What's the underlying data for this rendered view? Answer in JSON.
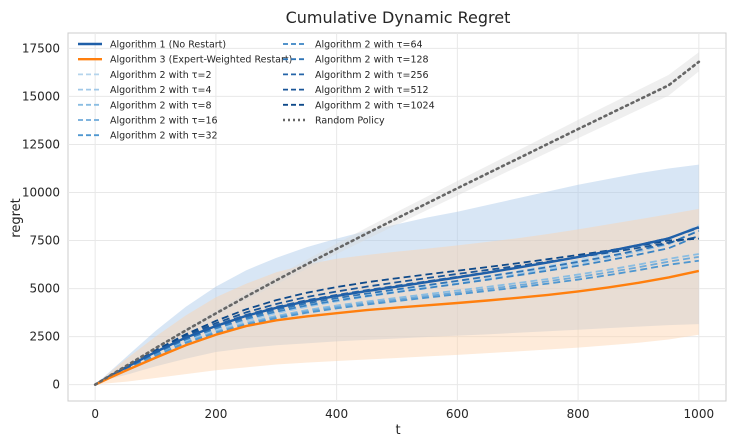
{
  "chart_data": {
    "type": "line",
    "title": "Cumulative Dynamic Regret",
    "xlabel": "t",
    "ylabel": "regret",
    "xlim": [
      -45,
      1045
    ],
    "ylim": [
      -850,
      18300
    ],
    "xticks": [
      0,
      200,
      400,
      600,
      800,
      1000
    ],
    "yticks": [
      0,
      2500,
      5000,
      7500,
      10000,
      12500,
      15000,
      17500
    ],
    "grid": true,
    "legend_position": "top-left",
    "x": [
      0,
      25,
      50,
      100,
      150,
      200,
      250,
      300,
      350,
      400,
      450,
      500,
      550,
      600,
      650,
      700,
      750,
      800,
      850,
      900,
      950,
      1000
    ],
    "series": [
      {
        "name": "Algorithm 1 (No Restart)",
        "style": "solid",
        "color": "#1f5fa8",
        "width": 2.4,
        "values": [
          0,
          460,
          880,
          1700,
          2450,
          3050,
          3580,
          4000,
          4340,
          4620,
          4870,
          5100,
          5340,
          5580,
          5830,
          6090,
          6360,
          6640,
          6940,
          7260,
          7610,
          8200
        ],
        "band": {
          "color": "#a9c8e8",
          "lower": [
            0,
            300,
            500,
            950,
            1350,
            1700,
            1900,
            2050,
            2150,
            2250,
            2330,
            2400,
            2480,
            2550,
            2620,
            2700,
            2780,
            2860,
            2940,
            3020,
            3100,
            3150
          ],
          "upper": [
            0,
            700,
            1400,
            2800,
            4050,
            5100,
            5950,
            6600,
            7150,
            7600,
            8000,
            8350,
            8700,
            9000,
            9350,
            9700,
            10050,
            10400,
            10700,
            11000,
            11250,
            11450
          ]
        }
      },
      {
        "name": "Algorithm 3 (Expert-Weighted Restart)",
        "style": "solid",
        "color": "#ff7f0e",
        "width": 2.4,
        "values": [
          0,
          370,
          720,
          1400,
          2050,
          2600,
          3050,
          3350,
          3550,
          3720,
          3880,
          4010,
          4130,
          4250,
          4380,
          4520,
          4670,
          4850,
          5060,
          5300,
          5580,
          5920
        ],
        "band": {
          "color": "#fcd2ad",
          "lower": [
            0,
            80,
            150,
            350,
            550,
            750,
            900,
            1050,
            1150,
            1230,
            1310,
            1390,
            1470,
            1550,
            1640,
            1730,
            1830,
            1930,
            2050,
            2180,
            2350,
            2600
          ],
          "upper": [
            0,
            650,
            1300,
            2500,
            3600,
            4550,
            5250,
            5850,
            6250,
            6550,
            6750,
            6920,
            7080,
            7250,
            7430,
            7620,
            7840,
            8080,
            8340,
            8600,
            8870,
            9150
          ]
        }
      },
      {
        "name": "Algorithm 2 with τ=2",
        "style": "dashed",
        "color": "#b4d4ec",
        "width": 1.8,
        "values": [
          0,
          420,
          820,
          1600,
          2300,
          2880,
          3380,
          3780,
          4120,
          4400,
          4660,
          4900,
          5140,
          5380,
          5640,
          5900,
          6180,
          6480,
          6800,
          7150,
          7550,
          8300
        ]
      },
      {
        "name": "Algorithm 2 with τ=4",
        "style": "dashed",
        "color": "#a0c8e8",
        "width": 1.8,
        "values": [
          0,
          410,
          800,
          1570,
          2270,
          2840,
          3330,
          3720,
          4050,
          4330,
          4580,
          4810,
          5040,
          5270,
          5510,
          5760,
          6020,
          6300,
          6600,
          6930,
          7300,
          8050
        ]
      },
      {
        "name": "Algorithm 2 with τ=8",
        "style": "dashed",
        "color": "#8abde2",
        "width": 1.8,
        "values": [
          0,
          405,
          790,
          1550,
          2230,
          2780,
          3220,
          3580,
          3880,
          4120,
          4330,
          4520,
          4710,
          4900,
          5090,
          5290,
          5500,
          5730,
          5980,
          6250,
          6550,
          6800
        ]
      },
      {
        "name": "Algorithm 2 with τ=16",
        "style": "dashed",
        "color": "#6eaada",
        "width": 1.8,
        "values": [
          0,
          400,
          780,
          1530,
          2200,
          2740,
          3170,
          3520,
          3810,
          4040,
          4250,
          4430,
          4610,
          4790,
          4980,
          5170,
          5380,
          5600,
          5840,
          6110,
          6400,
          6650
        ]
      },
      {
        "name": "Algorithm 2 with τ=32",
        "style": "dashed",
        "color": "#4f97d0",
        "width": 1.8,
        "values": [
          0,
          395,
          770,
          1510,
          2170,
          2700,
          3120,
          3460,
          3740,
          3970,
          4170,
          4350,
          4530,
          4700,
          4880,
          5060,
          5260,
          5470,
          5700,
          5960,
          6240,
          6450
        ]
      },
      {
        "name": "Algorithm 2 with τ=64",
        "style": "dashed",
        "color": "#3a84c4",
        "width": 1.8,
        "values": [
          0,
          425,
          830,
          1630,
          2350,
          2930,
          3420,
          3800,
          4120,
          4380,
          4610,
          4820,
          5030,
          5240,
          5460,
          5690,
          5930,
          6190,
          6470,
          6770,
          7100,
          7750
        ]
      },
      {
        "name": "Algorithm 2 with τ=128",
        "style": "dashed",
        "color": "#2f74b5",
        "width": 1.8,
        "values": [
          0,
          430,
          845,
          1660,
          2400,
          3000,
          3500,
          3900,
          4230,
          4500,
          4740,
          4960,
          5180,
          5400,
          5630,
          5870,
          6120,
          6390,
          6680,
          7000,
          7350,
          8000
        ]
      },
      {
        "name": "Algorithm 2 with τ=256",
        "style": "dashed",
        "color": "#2464a8",
        "width": 1.8,
        "values": [
          0,
          440,
          860,
          1700,
          2470,
          3100,
          3630,
          4050,
          4390,
          4670,
          4920,
          5150,
          5380,
          5610,
          5850,
          6100,
          6360,
          6640,
          6940,
          7270,
          7630,
          8150
        ]
      },
      {
        "name": "Algorithm 2 with τ=512",
        "style": "dashed",
        "color": "#1a5698",
        "width": 1.8,
        "values": [
          0,
          450,
          880,
          1740,
          2540,
          3200,
          3760,
          4200,
          4560,
          4850,
          5100,
          5330,
          5550,
          5760,
          5970,
          6180,
          6400,
          6630,
          6870,
          7120,
          7390,
          7700
        ]
      },
      {
        "name": "Algorithm 2 with τ=1024",
        "style": "dashed",
        "color": "#0f4a8a",
        "width": 1.8,
        "values": [
          0,
          460,
          900,
          1790,
          2620,
          3320,
          3920,
          4400,
          4780,
          5080,
          5330,
          5540,
          5740,
          5930,
          6120,
          6320,
          6530,
          6750,
          6980,
          7230,
          7500,
          7600
        ]
      },
      {
        "name": "Random Policy",
        "style": "dotted",
        "color": "#666666",
        "width": 2.6,
        "values": [
          0,
          480,
          950,
          1900,
          2820,
          3710,
          4580,
          5430,
          6260,
          7070,
          7870,
          8660,
          9440,
          10220,
          10990,
          11760,
          12530,
          13300,
          14060,
          14820,
          15580,
          16800
        ],
        "band": {
          "color": "#dcdcdc",
          "lower": [
            0,
            460,
            910,
            1820,
            2700,
            3560,
            4400,
            5220,
            6020,
            6800,
            7570,
            8330,
            9090,
            9840,
            10590,
            11340,
            12080,
            12820,
            13560,
            14300,
            15040,
            16300
          ],
          "upper": [
            0,
            500,
            990,
            1980,
            2940,
            3860,
            4760,
            5640,
            6500,
            7340,
            8170,
            8990,
            9790,
            10600,
            11390,
            12180,
            12980,
            13780,
            14560,
            15340,
            16120,
            17300
          ]
        }
      }
    ]
  }
}
